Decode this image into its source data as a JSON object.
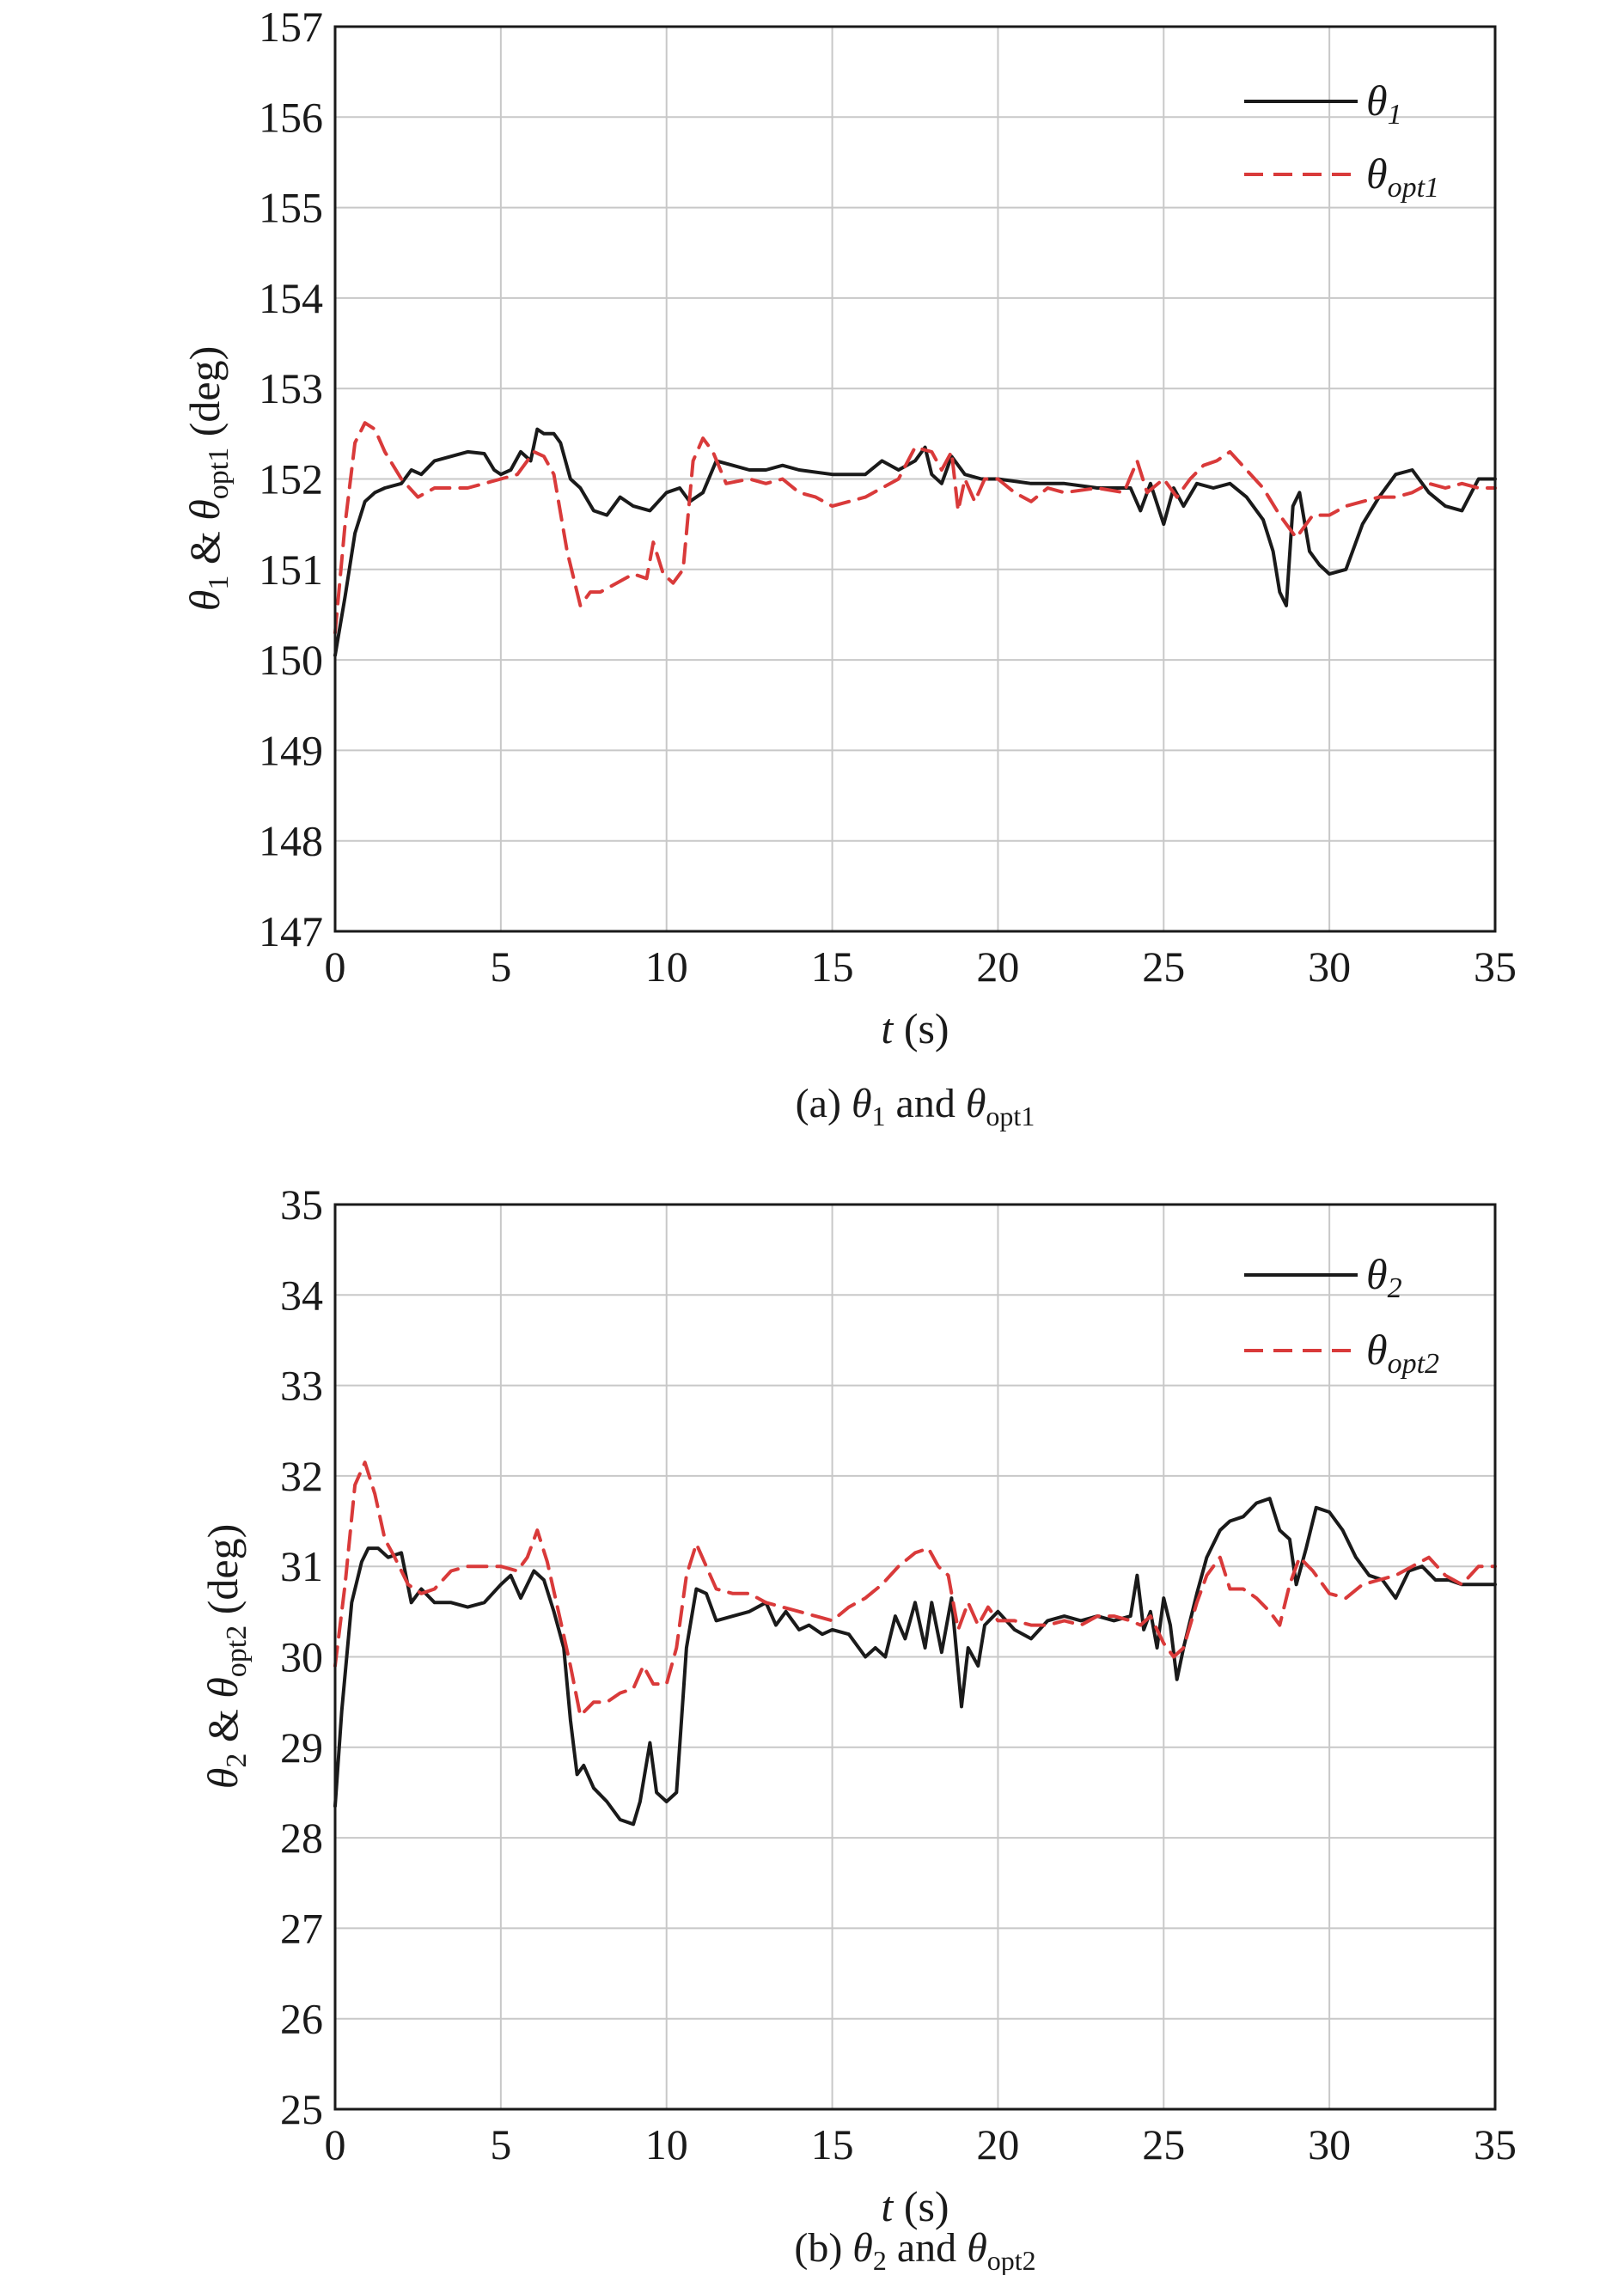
{
  "chart_data": [
    {
      "type": "line",
      "caption": "(a) θ1 and θopt1",
      "caption_parts": {
        "prefix": "(a) ",
        "theta": "θ",
        "sub1": "1",
        "mid": " and ",
        "sub2": "opt1"
      },
      "xlabel": "t (s)",
      "xlabel_parts": {
        "var": "t",
        "unit": " (s)"
      },
      "ylabel": "θ1 & θopt1 (deg)",
      "ylabel_parts": {
        "theta": "θ",
        "sub1": "1",
        "amp": " & ",
        "sub2": "opt1",
        "unit": " (deg)"
      },
      "xlim": [
        0,
        35
      ],
      "ylim": [
        147,
        157
      ],
      "xticks": [
        "0",
        "5",
        "10",
        "15",
        "20",
        "25",
        "30",
        "35"
      ],
      "yticks": [
        "147",
        "148",
        "149",
        "150",
        "151",
        "152",
        "153",
        "154",
        "155",
        "156",
        "157"
      ],
      "grid": true,
      "legend_position": "top-right",
      "series": [
        {
          "name": "θ1",
          "name_parts": {
            "theta": "θ",
            "sub": "1"
          },
          "color": "#1a1a1a",
          "style": "solid",
          "x": [
            0,
            0.3,
            0.6,
            0.9,
            1.2,
            1.5,
            2.0,
            2.3,
            2.6,
            3.0,
            3.5,
            4.0,
            4.5,
            4.8,
            5.0,
            5.3,
            5.6,
            5.9,
            6.1,
            6.3,
            6.6,
            6.8,
            7.1,
            7.4,
            7.8,
            8.2,
            8.6,
            9.0,
            9.5,
            10.0,
            10.4,
            10.7,
            11.1,
            11.5,
            12.0,
            12.5,
            13.0,
            13.5,
            14.0,
            15.0,
            16.0,
            16.5,
            17.0,
            17.5,
            17.8,
            18.0,
            18.3,
            18.6,
            19.0,
            19.5,
            20.0,
            21.0,
            22.0,
            23.0,
            24.0,
            24.3,
            24.6,
            25.0,
            25.3,
            25.6,
            26.0,
            26.5,
            27.0,
            27.5,
            28.0,
            28.3,
            28.5,
            28.7,
            28.9,
            29.1,
            29.4,
            29.7,
            30.0,
            30.5,
            31.0,
            31.5,
            32.0,
            32.5,
            33.0,
            33.5,
            34.0,
            34.5,
            35.0
          ],
          "values": [
            150.05,
            150.7,
            151.4,
            151.75,
            151.85,
            151.9,
            151.95,
            152.1,
            152.05,
            152.2,
            152.25,
            152.3,
            152.28,
            152.1,
            152.05,
            152.1,
            152.3,
            152.2,
            152.55,
            152.5,
            152.5,
            152.4,
            152.0,
            151.9,
            151.65,
            151.6,
            151.8,
            151.7,
            151.65,
            151.85,
            151.9,
            151.75,
            151.85,
            152.2,
            152.15,
            152.1,
            152.1,
            152.15,
            152.1,
            152.05,
            152.05,
            152.2,
            152.1,
            152.2,
            152.35,
            152.05,
            151.95,
            152.25,
            152.05,
            152.0,
            152.0,
            151.95,
            151.95,
            151.9,
            151.9,
            151.65,
            151.95,
            151.5,
            151.9,
            151.7,
            151.95,
            151.9,
            151.95,
            151.8,
            151.55,
            151.2,
            150.75,
            150.6,
            151.7,
            151.85,
            151.2,
            151.05,
            150.95,
            151.0,
            151.5,
            151.8,
            152.05,
            152.1,
            151.85,
            151.7,
            151.65,
            152.0,
            152.0
          ]
        },
        {
          "name": "θopt1",
          "name_parts": {
            "theta": "θ",
            "sub": "opt1"
          },
          "color": "#d93a3a",
          "style": "dashed",
          "x": [
            0,
            0.3,
            0.6,
            0.9,
            1.2,
            1.5,
            2.0,
            2.5,
            3.0,
            3.5,
            4.0,
            4.5,
            5.0,
            5.5,
            6.0,
            6.3,
            6.6,
            7.0,
            7.2,
            7.4,
            7.7,
            8.0,
            8.5,
            9.0,
            9.4,
            9.6,
            9.9,
            10.2,
            10.5,
            10.8,
            11.1,
            11.4,
            11.8,
            12.5,
            13.0,
            13.5,
            14.0,
            14.5,
            15.0,
            15.5,
            16.0,
            16.5,
            17.0,
            17.5,
            18.0,
            18.3,
            18.6,
            18.8,
            19.0,
            19.3,
            19.6,
            20.0,
            20.5,
            21.0,
            21.5,
            22.0,
            23.0,
            23.8,
            24.2,
            24.5,
            25.0,
            25.4,
            25.8,
            26.2,
            26.6,
            27.0,
            27.5,
            28.0,
            28.5,
            29.0,
            29.5,
            30.0,
            30.5,
            31.0,
            31.5,
            32.0,
            32.5,
            33.0,
            33.5,
            34.0,
            34.5,
            35.0
          ],
          "values": [
            150.3,
            151.5,
            152.4,
            152.62,
            152.55,
            152.3,
            152.0,
            151.8,
            151.9,
            151.9,
            151.9,
            151.95,
            152.0,
            152.05,
            152.3,
            152.25,
            152.05,
            151.2,
            150.9,
            150.6,
            150.75,
            150.75,
            150.85,
            150.95,
            150.9,
            151.3,
            150.95,
            150.85,
            151.0,
            152.2,
            152.45,
            152.3,
            151.95,
            152.0,
            151.95,
            152.0,
            151.85,
            151.8,
            151.7,
            151.75,
            151.8,
            151.9,
            152.0,
            152.35,
            152.3,
            152.1,
            152.3,
            151.65,
            152.0,
            151.75,
            152.0,
            152.0,
            151.85,
            151.75,
            151.9,
            151.85,
            151.9,
            151.85,
            152.2,
            151.85,
            152.0,
            151.8,
            152.0,
            152.15,
            152.2,
            152.3,
            152.1,
            151.9,
            151.6,
            151.35,
            151.6,
            151.6,
            151.7,
            151.75,
            151.8,
            151.8,
            151.85,
            151.95,
            151.9,
            151.95,
            151.9,
            151.9
          ]
        }
      ]
    },
    {
      "type": "line",
      "caption": "(b) θ2 and θopt2",
      "caption_parts": {
        "prefix": "(b) ",
        "theta": "θ",
        "sub1": "2",
        "mid": " and ",
        "sub2": "opt2"
      },
      "xlabel": "t (s)",
      "xlabel_parts": {
        "var": "t",
        "unit": " (s)"
      },
      "ylabel": "θ2 & θopt2 (deg)",
      "ylabel_parts": {
        "theta": "θ",
        "sub1": "2",
        "amp": " & ",
        "sub2": "opt2",
        "unit": " (deg)"
      },
      "xlim": [
        0,
        35
      ],
      "ylim": [
        25,
        35
      ],
      "xticks": [
        "0",
        "5",
        "10",
        "15",
        "20",
        "25",
        "30",
        "35"
      ],
      "yticks": [
        "25",
        "26",
        "27",
        "28",
        "29",
        "30",
        "31",
        "32",
        "33",
        "34",
        "35"
      ],
      "grid": true,
      "legend_position": "top-right",
      "series": [
        {
          "name": "θ2",
          "name_parts": {
            "theta": "θ",
            "sub": "2"
          },
          "color": "#1a1a1a",
          "style": "solid",
          "x": [
            0,
            0.2,
            0.5,
            0.8,
            1.0,
            1.3,
            1.6,
            2.0,
            2.3,
            2.6,
            3.0,
            3.5,
            4.0,
            4.5,
            5.0,
            5.3,
            5.6,
            6.0,
            6.3,
            6.6,
            6.9,
            7.1,
            7.3,
            7.5,
            7.8,
            8.2,
            8.6,
            9.0,
            9.2,
            9.5,
            9.7,
            10.0,
            10.3,
            10.6,
            10.9,
            11.2,
            11.5,
            12.0,
            12.5,
            13.0,
            13.3,
            13.6,
            14.0,
            14.3,
            14.7,
            15.0,
            15.5,
            16.0,
            16.3,
            16.6,
            16.9,
            17.2,
            17.5,
            17.8,
            18.0,
            18.3,
            18.6,
            18.9,
            19.1,
            19.4,
            19.6,
            20.0,
            20.5,
            21.0,
            21.5,
            22.0,
            22.5,
            23.0,
            23.5,
            24.0,
            24.2,
            24.4,
            24.6,
            24.8,
            25.0,
            25.2,
            25.4,
            25.6,
            25.8,
            26.0,
            26.3,
            26.7,
            27.0,
            27.4,
            27.8,
            28.2,
            28.5,
            28.8,
            29.0,
            29.3,
            29.6,
            30.0,
            30.4,
            30.8,
            31.2,
            31.6,
            32.0,
            32.4,
            32.8,
            33.2,
            33.6,
            34.0,
            34.5,
            35.0
          ],
          "values": [
            28.35,
            29.4,
            30.6,
            31.05,
            31.2,
            31.2,
            31.1,
            31.15,
            30.6,
            30.75,
            30.6,
            30.6,
            30.55,
            30.6,
            30.8,
            30.9,
            30.65,
            30.95,
            30.85,
            30.5,
            30.1,
            29.3,
            28.7,
            28.8,
            28.55,
            28.4,
            28.2,
            28.15,
            28.4,
            29.05,
            28.5,
            28.4,
            28.5,
            30.1,
            30.75,
            30.7,
            30.4,
            30.45,
            30.5,
            30.6,
            30.35,
            30.5,
            30.3,
            30.35,
            30.25,
            30.3,
            30.25,
            30.0,
            30.1,
            30.0,
            30.45,
            30.2,
            30.6,
            30.1,
            30.6,
            30.05,
            30.65,
            29.45,
            30.1,
            29.9,
            30.35,
            30.5,
            30.3,
            30.2,
            30.4,
            30.45,
            30.4,
            30.45,
            30.4,
            30.45,
            30.9,
            30.3,
            30.5,
            30.1,
            30.65,
            30.35,
            29.75,
            30.1,
            30.4,
            30.7,
            31.1,
            31.4,
            31.5,
            31.55,
            31.7,
            31.75,
            31.4,
            31.3,
            30.8,
            31.2,
            31.65,
            31.6,
            31.4,
            31.1,
            30.9,
            30.85,
            30.65,
            30.95,
            31.0,
            30.85,
            30.85,
            30.8,
            30.8,
            30.8
          ]
        },
        {
          "name": "θopt2",
          "name_parts": {
            "theta": "θ",
            "sub": "opt2"
          },
          "color": "#d93a3a",
          "style": "dashed",
          "x": [
            0,
            0.3,
            0.6,
            0.9,
            1.2,
            1.5,
            1.8,
            2.2,
            2.6,
            3.0,
            3.5,
            4.0,
            4.5,
            5.0,
            5.5,
            5.8,
            6.1,
            6.4,
            6.8,
            7.1,
            7.4,
            7.8,
            8.2,
            8.6,
            9.0,
            9.3,
            9.6,
            10.0,
            10.3,
            10.6,
            10.9,
            11.2,
            11.5,
            12.0,
            12.5,
            13.0,
            13.5,
            14.0,
            14.5,
            15.0,
            15.5,
            16.0,
            16.5,
            17.0,
            17.5,
            17.9,
            18.2,
            18.5,
            18.8,
            19.1,
            19.4,
            19.7,
            20.0,
            20.5,
            21.0,
            21.5,
            22.0,
            22.5,
            23.0,
            23.5,
            24.0,
            24.3,
            24.6,
            25.0,
            25.3,
            25.6,
            26.0,
            26.3,
            26.7,
            27.0,
            27.4,
            27.8,
            28.2,
            28.5,
            28.8,
            29.1,
            29.5,
            30.0,
            30.5,
            31.0,
            31.5,
            32.0,
            32.5,
            33.0,
            33.5,
            34.0,
            34.5,
            35.0
          ],
          "values": [
            29.9,
            30.8,
            31.9,
            32.15,
            31.8,
            31.3,
            31.1,
            30.8,
            30.7,
            30.75,
            30.95,
            31.0,
            31.0,
            31.0,
            30.95,
            31.1,
            31.4,
            31.05,
            30.4,
            29.9,
            29.35,
            29.5,
            29.5,
            29.6,
            29.65,
            29.9,
            29.7,
            29.7,
            30.1,
            30.9,
            31.25,
            31.0,
            30.75,
            30.7,
            30.7,
            30.6,
            30.55,
            30.5,
            30.45,
            30.4,
            30.55,
            30.65,
            30.8,
            31.0,
            31.15,
            31.2,
            31.0,
            30.9,
            30.3,
            30.6,
            30.35,
            30.55,
            30.4,
            30.4,
            30.35,
            30.35,
            30.4,
            30.35,
            30.45,
            30.45,
            30.4,
            30.35,
            30.45,
            30.15,
            30.0,
            30.1,
            30.6,
            30.9,
            31.1,
            30.75,
            30.75,
            30.65,
            30.5,
            30.35,
            30.8,
            31.1,
            30.95,
            30.7,
            30.65,
            30.8,
            30.85,
            30.9,
            31.0,
            31.1,
            30.9,
            30.8,
            31.0,
            31.0
          ]
        }
      ]
    }
  ]
}
